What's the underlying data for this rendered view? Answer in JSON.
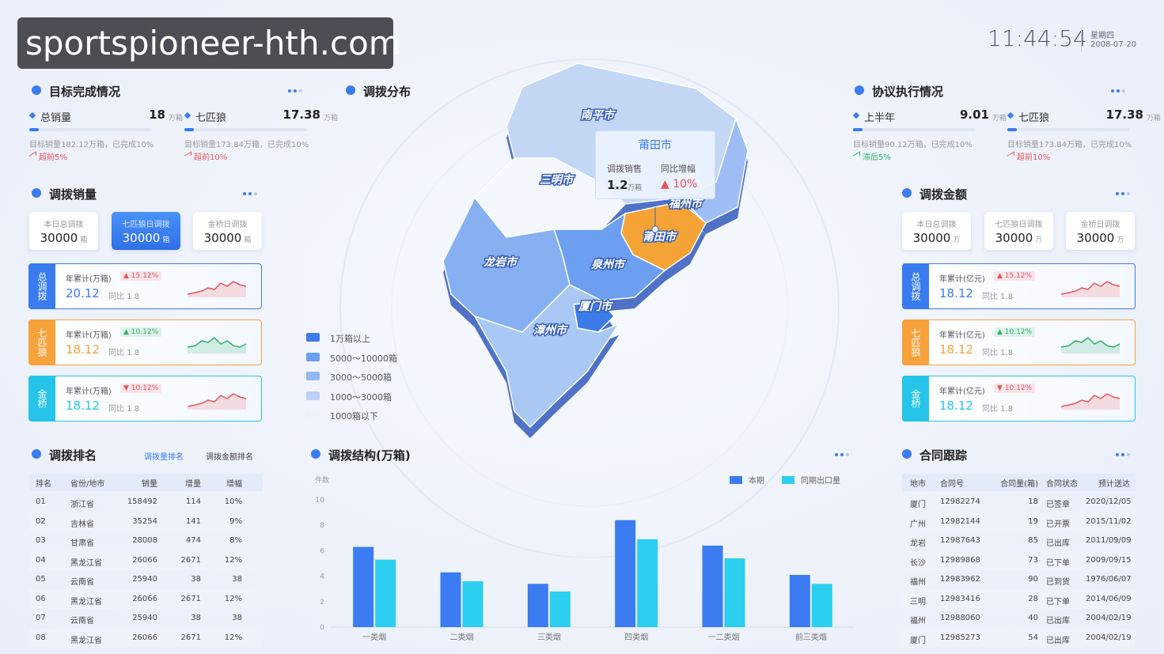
{
  "header": {
    "watermark": "sportspioneer-hth.com",
    "time": "11:44:54",
    "weekday": "星期四",
    "date": "2008-07-20"
  },
  "target": {
    "title": "目标完成情况",
    "items": [
      {
        "name": "总销量",
        "value": "18",
        "unit": "万箱",
        "note": "目标销量182.12万箱，已完成10%",
        "trend": "超前5%",
        "color": "#e8545a"
      },
      {
        "name": "七匹狼",
        "value": "17.38",
        "unit": "万箱",
        "note": "目标销量173.84万箱，已完成10%",
        "trend": "超前10%",
        "color": "#e8545a"
      }
    ]
  },
  "volume": {
    "title": "调拨销量",
    "selected": 1,
    "tabs": [
      {
        "label": "本日总调拨",
        "value": "30000",
        "unit": "箱"
      },
      {
        "label": "七匹狼日调拨",
        "value": "30000",
        "unit": "箱"
      },
      {
        "label": "金桥日调拨",
        "value": "30000",
        "unit": "箱"
      }
    ],
    "cards": [
      {
        "tag": "总调拨",
        "label": "年累计(万箱)",
        "change": "▲ 15.12%",
        "value": "20.12",
        "yoy": "同比 1.8",
        "color": "#3a7cf0",
        "change_color": "#e8545a"
      },
      {
        "tag": "七匹狼",
        "label": "年累计(万箱)",
        "change": "▲ 10.12%",
        "value": "18.12",
        "yoy": "同比 1.8",
        "color": "#f7a23b",
        "change_color": "#2fb36a"
      },
      {
        "tag": "金桥",
        "label": "年累计(万箱)",
        "change": "▼ 10.12%",
        "value": "18.12",
        "yoy": "同比 1.8",
        "color": "#25c4e8",
        "change_color": "#e8545a"
      }
    ]
  },
  "ranking": {
    "title": "调拨排名",
    "tabs": [
      "调拨量排名",
      "调拨金额排名"
    ],
    "columns": [
      "排名",
      "省份/地市",
      "销量",
      "增量",
      "增幅"
    ],
    "rows": [
      [
        "01",
        "浙江省",
        "158492",
        "114",
        "10%"
      ],
      [
        "02",
        "吉林省",
        "35254",
        "141",
        "9%"
      ],
      [
        "03",
        "甘肃省",
        "28008",
        "474",
        "8%"
      ],
      [
        "04",
        "黑龙江省",
        "26066",
        "2671",
        "12%"
      ],
      [
        "05",
        "云南省",
        "25940",
        "38",
        "38"
      ],
      [
        "06",
        "黑龙江省",
        "26066",
        "2671",
        "12%"
      ],
      [
        "07",
        "云南省",
        "25940",
        "38",
        "38"
      ],
      [
        "08",
        "黑龙江省",
        "26066",
        "2671",
        "12%"
      ]
    ]
  },
  "distribution": {
    "title": "调拨分布",
    "cities": [
      "南平市",
      "三明市",
      "福州市",
      "莆田市",
      "龙岩市",
      "泉州市",
      "厦门市",
      "漳州市"
    ],
    "tooltip": {
      "city": "莆田市",
      "label1": "调拨销售",
      "value": "1.2",
      "unit": "万箱",
      "label2": "同比增幅",
      "change": "▲ 10%"
    },
    "legend": [
      {
        "label": "1万箱以上",
        "color": "#3b7ce8"
      },
      {
        "label": "5000～10000箱",
        "color": "#6d9ff0"
      },
      {
        "label": "3000～5000箱",
        "color": "#94b8f3"
      },
      {
        "label": "1000～3000箱",
        "color": "#bcd2f6"
      },
      {
        "label": "1000箱以下",
        "color": "#eef3fb"
      }
    ]
  },
  "chart_data": {
    "type": "bar",
    "title": "调拨结构(万箱)",
    "y_label": "件数",
    "categories": [
      "一类烟",
      "二类烟",
      "三类烟",
      "四类烟",
      "一二类烟",
      "前三类烟"
    ],
    "series": [
      {
        "name": "本期",
        "color": "#3b7cf2",
        "values": [
          6.3,
          4.3,
          3.4,
          8.4,
          6.4,
          4.1
        ]
      },
      {
        "name": "同期出口量",
        "color": "#2dcff0",
        "values": [
          5.3,
          3.6,
          2.8,
          6.9,
          5.4,
          3.4
        ]
      }
    ],
    "ylim": [
      0,
      10
    ],
    "yticks": [
      0,
      2,
      4,
      6,
      8,
      10
    ],
    "grid": false,
    "legend": "top-right"
  },
  "agreement": {
    "title": "协议执行情况",
    "items": [
      {
        "name": "上半年",
        "value": "9.01",
        "unit": "万箱",
        "note": "目标销量90.12万箱，已完成10%",
        "trend": "滞后5%",
        "color": "#2fb36a"
      },
      {
        "name": "七匹狼",
        "value": "17.38",
        "unit": "万箱",
        "note": "目标销量173.84万箱，已完成10%",
        "trend": "超前10%",
        "color": "#e8545a"
      }
    ]
  },
  "amount": {
    "title": "调拨金额",
    "selected": -1,
    "tabs": [
      {
        "label": "本日总调拨",
        "value": "30000",
        "unit": "万"
      },
      {
        "label": "七匹狼日调拨",
        "value": "30000",
        "unit": "万"
      },
      {
        "label": "金桥日调拨",
        "value": "30000",
        "unit": "万"
      }
    ],
    "cards": [
      {
        "tag": "总调拨",
        "label": "年累计(亿元)",
        "change": "▲ 15.12%",
        "value": "18.12",
        "yoy": "同比 1.8",
        "color": "#3a7cf0",
        "change_color": "#e8545a"
      },
      {
        "tag": "七匹狼",
        "label": "年累计(亿元)",
        "change": "▲ 10.12%",
        "value": "18.12",
        "yoy": "同比 1.8",
        "color": "#f7a23b",
        "change_color": "#2fb36a"
      },
      {
        "tag": "金桥",
        "label": "年累计(亿元)",
        "change": "▼ 10.12%",
        "value": "18.12",
        "yoy": "同比 1.8",
        "color": "#25c4e8",
        "change_color": "#e8545a"
      }
    ]
  },
  "contracts": {
    "title": "合同跟踪",
    "columns": [
      "地市",
      "合同号",
      "合同量(箱)",
      "合同状态",
      "预计送达"
    ],
    "rows": [
      [
        "厦门",
        "12982274",
        "18",
        "已签章",
        "2020/12/05"
      ],
      [
        "广州",
        "12982144",
        "19",
        "已开票",
        "2015/11/02"
      ],
      [
        "龙岩",
        "12987643",
        "85",
        "已出库",
        "2011/09/09"
      ],
      [
        "长沙",
        "12989868",
        "73",
        "已下单",
        "2009/09/15"
      ],
      [
        "福州",
        "12983962",
        "90",
        "已到货",
        "1976/06/07"
      ],
      [
        "三明",
        "12983416",
        "28",
        "已下单",
        "2014/06/09"
      ],
      [
        "福州",
        "12988060",
        "40",
        "已出库",
        "2004/02/19"
      ],
      [
        "厦门",
        "12985273",
        "54",
        "已出库",
        "2004/02/19"
      ]
    ]
  }
}
